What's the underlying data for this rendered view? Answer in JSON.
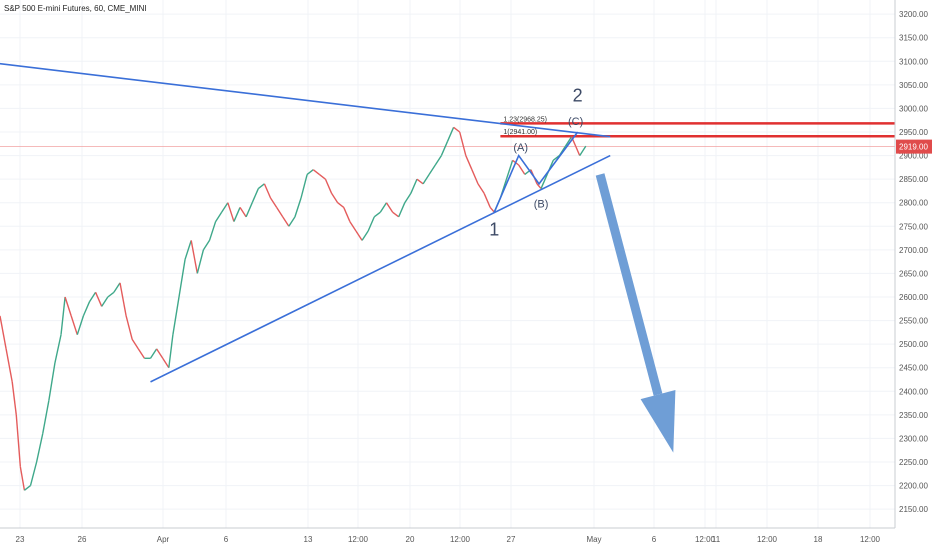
{
  "chart_data": {
    "type": "line",
    "title": "S&P 500 E-mini Futures, 60, CME_MINI",
    "y_axis": {
      "ylim": [
        2110,
        3230
      ],
      "ticks": [
        2150,
        2200,
        2250,
        2300,
        2350,
        2400,
        2450,
        2500,
        2550,
        2600,
        2650,
        2700,
        2750,
        2800,
        2850,
        2900,
        2950,
        3000,
        3050,
        3100,
        3150,
        3200
      ],
      "tick_labels": [
        "2150.00",
        "2200.00",
        "2250.00",
        "2300.00",
        "2350.00",
        "2400.00",
        "2450.00",
        "2500.00",
        "2550.00",
        "2600.00",
        "2650.00",
        "2700.00",
        "2750.00",
        "2800.00",
        "2850.00",
        "2900.00",
        "2950.00",
        "3000.00",
        "3050.00",
        "3100.00",
        "3150.00",
        "3200.00"
      ]
    },
    "x_axis": {
      "tick_labels": [
        "23",
        "26",
        "Apr",
        "6",
        "13",
        "12:00",
        "20",
        "12:00",
        "27",
        "May",
        "6",
        "12:00",
        "11",
        "12:00",
        "18",
        "12:00"
      ]
    },
    "last_price": "2919.00",
    "price_series": [
      {
        "x": 0,
        "y": 2560
      },
      {
        "x": 3,
        "y": 2490
      },
      {
        "x": 6,
        "y": 2420
      },
      {
        "x": 8,
        "y": 2350
      },
      {
        "x": 10,
        "y": 2240
      },
      {
        "x": 12,
        "y": 2190
      },
      {
        "x": 15,
        "y": 2200
      },
      {
        "x": 18,
        "y": 2250
      },
      {
        "x": 21,
        "y": 2310
      },
      {
        "x": 24,
        "y": 2380
      },
      {
        "x": 27,
        "y": 2460
      },
      {
        "x": 30,
        "y": 2520
      },
      {
        "x": 32,
        "y": 2600
      },
      {
        "x": 35,
        "y": 2560
      },
      {
        "x": 38,
        "y": 2520
      },
      {
        "x": 41,
        "y": 2560
      },
      {
        "x": 44,
        "y": 2590
      },
      {
        "x": 47,
        "y": 2610
      },
      {
        "x": 50,
        "y": 2580
      },
      {
        "x": 53,
        "y": 2600
      },
      {
        "x": 56,
        "y": 2610
      },
      {
        "x": 59,
        "y": 2630
      },
      {
        "x": 62,
        "y": 2560
      },
      {
        "x": 65,
        "y": 2510
      },
      {
        "x": 68,
        "y": 2490
      },
      {
        "x": 71,
        "y": 2470
      },
      {
        "x": 74,
        "y": 2470
      },
      {
        "x": 77,
        "y": 2490
      },
      {
        "x": 80,
        "y": 2470
      },
      {
        "x": 83,
        "y": 2450
      },
      {
        "x": 85,
        "y": 2520
      },
      {
        "x": 88,
        "y": 2600
      },
      {
        "x": 91,
        "y": 2680
      },
      {
        "x": 94,
        "y": 2720
      },
      {
        "x": 97,
        "y": 2650
      },
      {
        "x": 100,
        "y": 2700
      },
      {
        "x": 103,
        "y": 2720
      },
      {
        "x": 106,
        "y": 2760
      },
      {
        "x": 109,
        "y": 2780
      },
      {
        "x": 112,
        "y": 2800
      },
      {
        "x": 115,
        "y": 2760
      },
      {
        "x": 118,
        "y": 2790
      },
      {
        "x": 121,
        "y": 2770
      },
      {
        "x": 124,
        "y": 2800
      },
      {
        "x": 127,
        "y": 2830
      },
      {
        "x": 130,
        "y": 2840
      },
      {
        "x": 133,
        "y": 2810
      },
      {
        "x": 136,
        "y": 2790
      },
      {
        "x": 139,
        "y": 2770
      },
      {
        "x": 142,
        "y": 2750
      },
      {
        "x": 145,
        "y": 2770
      },
      {
        "x": 148,
        "y": 2810
      },
      {
        "x": 151,
        "y": 2860
      },
      {
        "x": 154,
        "y": 2870
      },
      {
        "x": 157,
        "y": 2860
      },
      {
        "x": 160,
        "y": 2850
      },
      {
        "x": 163,
        "y": 2820
      },
      {
        "x": 166,
        "y": 2800
      },
      {
        "x": 169,
        "y": 2790
      },
      {
        "x": 172,
        "y": 2760
      },
      {
        "x": 175,
        "y": 2740
      },
      {
        "x": 178,
        "y": 2720
      },
      {
        "x": 181,
        "y": 2740
      },
      {
        "x": 184,
        "y": 2770
      },
      {
        "x": 187,
        "y": 2780
      },
      {
        "x": 190,
        "y": 2800
      },
      {
        "x": 193,
        "y": 2780
      },
      {
        "x": 196,
        "y": 2770
      },
      {
        "x": 199,
        "y": 2800
      },
      {
        "x": 202,
        "y": 2820
      },
      {
        "x": 205,
        "y": 2850
      },
      {
        "x": 208,
        "y": 2840
      },
      {
        "x": 211,
        "y": 2860
      },
      {
        "x": 214,
        "y": 2880
      },
      {
        "x": 217,
        "y": 2900
      },
      {
        "x": 220,
        "y": 2930
      },
      {
        "x": 223,
        "y": 2960
      },
      {
        "x": 226,
        "y": 2950
      },
      {
        "x": 229,
        "y": 2900
      },
      {
        "x": 232,
        "y": 2870
      },
      {
        "x": 235,
        "y": 2840
      },
      {
        "x": 238,
        "y": 2820
      },
      {
        "x": 241,
        "y": 2790
      },
      {
        "x": 243,
        "y": 2780
      },
      {
        "x": 246,
        "y": 2810
      },
      {
        "x": 249,
        "y": 2850
      },
      {
        "x": 252,
        "y": 2890
      },
      {
        "x": 255,
        "y": 2880
      },
      {
        "x": 258,
        "y": 2860
      },
      {
        "x": 261,
        "y": 2870
      },
      {
        "x": 264,
        "y": 2840
      },
      {
        "x": 266,
        "y": 2830
      },
      {
        "x": 269,
        "y": 2860
      },
      {
        "x": 272,
        "y": 2890
      },
      {
        "x": 275,
        "y": 2900
      },
      {
        "x": 278,
        "y": 2920
      },
      {
        "x": 281,
        "y": 2940
      },
      {
        "x": 283,
        "y": 2920
      },
      {
        "x": 285,
        "y": 2900
      },
      {
        "x": 288,
        "y": 2920
      }
    ],
    "lines": [
      {
        "name": "upper-trendline",
        "color": "#3a6fd8",
        "points": [
          {
            "x": -10,
            "y": 3100
          },
          {
            "x": 300,
            "y": 2940
          }
        ]
      },
      {
        "name": "lower-trendline",
        "color": "#3a6fd8",
        "points": [
          {
            "x": 74,
            "y": 2420
          },
          {
            "x": 300,
            "y": 2900
          }
        ]
      },
      {
        "name": "wave-A-channel",
        "color": "#3a6fd8",
        "points": [
          {
            "x": 243,
            "y": 2780
          },
          {
            "x": 255,
            "y": 2900
          },
          {
            "x": 265,
            "y": 2840
          },
          {
            "x": 284,
            "y": 2950
          }
        ]
      }
    ],
    "fib_levels": [
      {
        "label": "1.23(2968.25)",
        "value": 2968.25,
        "color": "#e03030"
      },
      {
        "label": "1(2941.00)",
        "value": 2941.0,
        "color": "#e03030"
      }
    ],
    "wave_labels": [
      {
        "text": "1",
        "x": 243,
        "y": 2730
      },
      {
        "text": "2",
        "x": 284,
        "y": 3015
      },
      {
        "text": "(A)",
        "x": 256,
        "y": 2910
      },
      {
        "text": "(B)",
        "x": 266,
        "y": 2790
      },
      {
        "text": "(C)",
        "x": 283,
        "y": 2965
      }
    ],
    "arrow": {
      "color": "#6f9ed6",
      "from": {
        "x": 295,
        "y": 2860
      },
      "to": {
        "x": 331,
        "y": 2270
      }
    }
  }
}
